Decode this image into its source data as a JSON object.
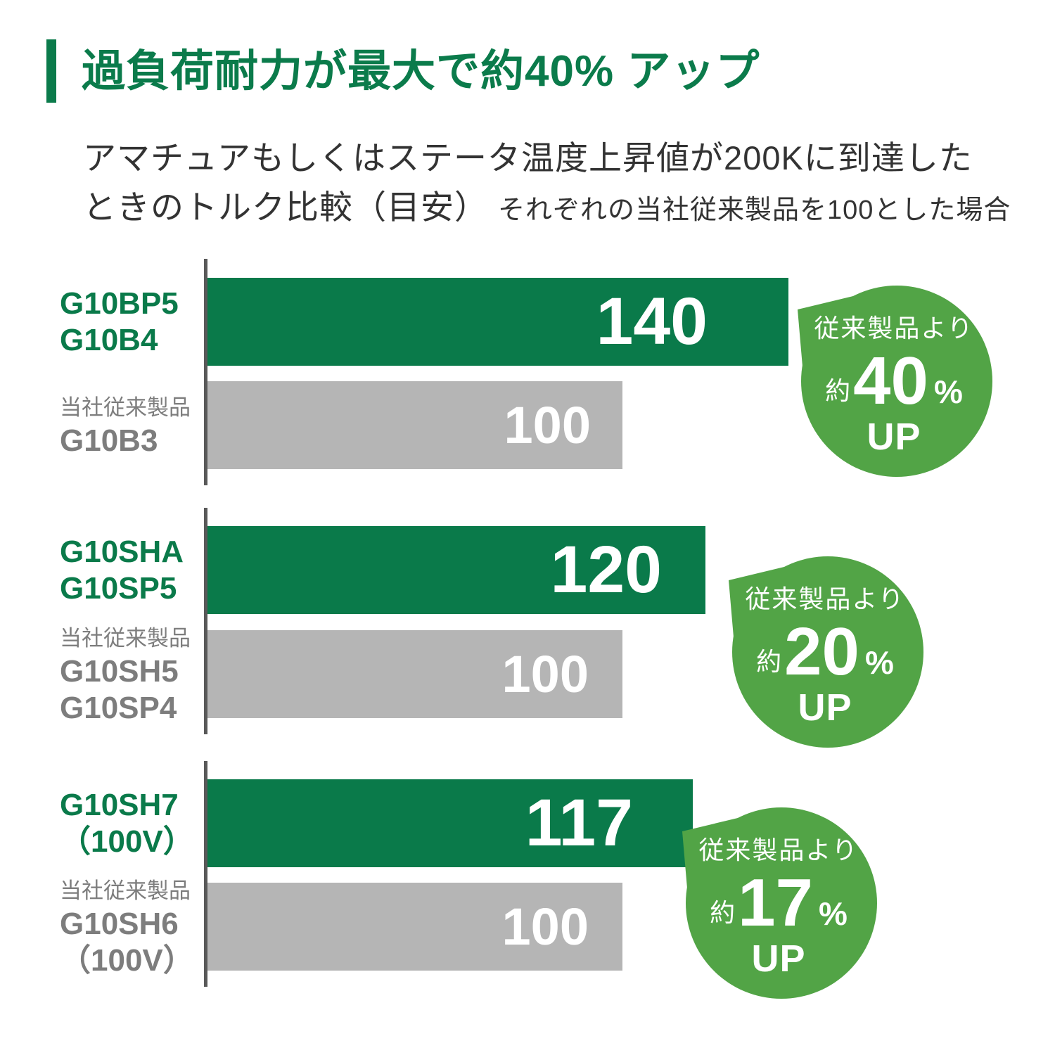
{
  "title": "過負荷耐力が最大で約40% アップ",
  "subtitle": {
    "line1": "アマチュアもしくはステータ温度上昇値が200Kに到達した",
    "line2_main": "ときのトルク比較（目安）",
    "line2_note": "それぞれの当社従来製品を100とした場合"
  },
  "colors": {
    "title_green": "#0b7b4b",
    "bar_green": "#0a7a4a",
    "badge_green": "#52a446",
    "bar_gray": "#b5b5b5",
    "label_gray": "#7d7d7d",
    "axis_gray": "#595959",
    "text_dark": "#333333"
  },
  "chart_data": {
    "type": "bar",
    "orientation": "horizontal",
    "baseline_note": "それぞれの当社従来製品を100とした場合",
    "groups": [
      {
        "new_models": [
          "G10BP5",
          "G10B4"
        ],
        "new_value": 140,
        "old_caption": "当社従来製品",
        "old_models": [
          "G10B3"
        ],
        "old_value": 100,
        "badge": {
          "line1": "従来製品より",
          "prefix": "約",
          "value": "40",
          "percent": "%",
          "suffix": "UP"
        }
      },
      {
        "new_models": [
          "G10SHA",
          "G10SP5"
        ],
        "new_value": 120,
        "old_caption": "当社従来製品",
        "old_models": [
          "G10SH5",
          "G10SP4"
        ],
        "old_value": 100,
        "badge": {
          "line1": "従来製品より",
          "prefix": "約",
          "value": "20",
          "percent": "%",
          "suffix": "UP"
        }
      },
      {
        "new_models": [
          "G10SH7",
          "（100V）"
        ],
        "new_value": 117,
        "old_caption": "当社従来製品",
        "old_models": [
          "G10SH6",
          "（100V）"
        ],
        "old_value": 100,
        "badge": {
          "line1": "従来製品より",
          "prefix": "約",
          "value": "17",
          "percent": "%",
          "suffix": "UP"
        }
      }
    ]
  }
}
